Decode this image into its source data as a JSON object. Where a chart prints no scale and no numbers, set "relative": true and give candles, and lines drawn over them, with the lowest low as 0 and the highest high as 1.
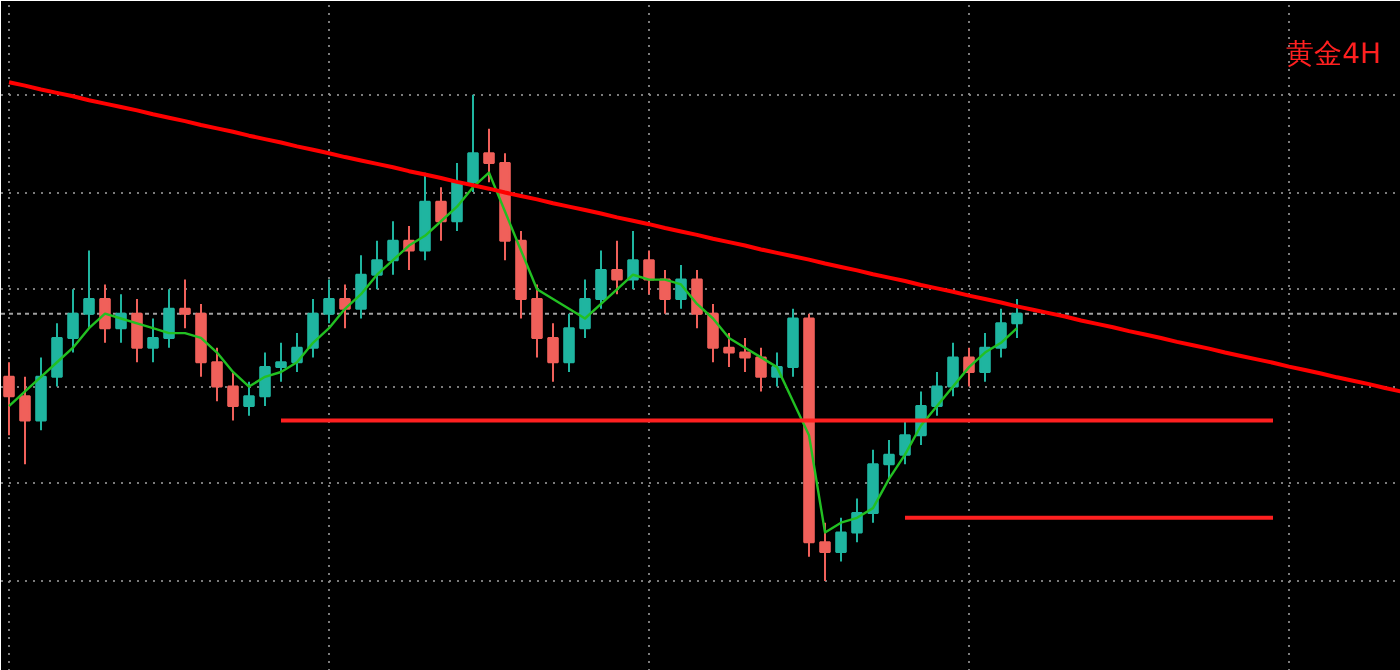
{
  "chart_data": {
    "type": "candlestick",
    "title": "黄金4H",
    "relative": true,
    "grid": true,
    "tick_labels": false,
    "categories": [
      null,
      null,
      null,
      null,
      null,
      null,
      null,
      null,
      null,
      null,
      null,
      null,
      null,
      null,
      null,
      null,
      null,
      null,
      null,
      null,
      null,
      null,
      null,
      null,
      null,
      null,
      null,
      null,
      null,
      null,
      null,
      null,
      null,
      null,
      null,
      null,
      null,
      null,
      null,
      null,
      null,
      null,
      null,
      null,
      null,
      null,
      null,
      null,
      null,
      null,
      null,
      null,
      null,
      null,
      null,
      null,
      null,
      null,
      null,
      null,
      null,
      null,
      null,
      null,
      null,
      null,
      null,
      null,
      null,
      null,
      null,
      null,
      null,
      null,
      null,
      null,
      null,
      null,
      null,
      null,
      null,
      null,
      null,
      null,
      null,
      null,
      null,
      null
    ],
    "ohlc": [
      [
        0.42,
        0.45,
        0.3,
        0.38
      ],
      [
        0.38,
        0.42,
        0.24,
        0.33
      ],
      [
        0.33,
        0.46,
        0.31,
        0.42
      ],
      [
        0.42,
        0.53,
        0.4,
        0.5
      ],
      [
        0.5,
        0.6,
        0.47,
        0.55
      ],
      [
        0.55,
        0.68,
        0.52,
        0.58
      ],
      [
        0.58,
        0.61,
        0.49,
        0.52
      ],
      [
        0.52,
        0.59,
        0.49,
        0.55
      ],
      [
        0.55,
        0.58,
        0.45,
        0.48
      ],
      [
        0.48,
        0.54,
        0.45,
        0.5
      ],
      [
        0.5,
        0.6,
        0.48,
        0.56
      ],
      [
        0.56,
        0.62,
        0.52,
        0.55
      ],
      [
        0.55,
        0.57,
        0.42,
        0.45
      ],
      [
        0.45,
        0.48,
        0.37,
        0.4
      ],
      [
        0.4,
        0.43,
        0.33,
        0.36
      ],
      [
        0.36,
        0.41,
        0.34,
        0.38
      ],
      [
        0.38,
        0.47,
        0.36,
        0.44
      ],
      [
        0.44,
        0.49,
        0.41,
        0.45
      ],
      [
        0.45,
        0.51,
        0.43,
        0.48
      ],
      [
        0.48,
        0.58,
        0.46,
        0.55
      ],
      [
        0.55,
        0.62,
        0.53,
        0.58
      ],
      [
        0.58,
        0.61,
        0.52,
        0.56
      ],
      [
        0.56,
        0.67,
        0.54,
        0.63
      ],
      [
        0.63,
        0.7,
        0.6,
        0.66
      ],
      [
        0.66,
        0.74,
        0.63,
        0.7
      ],
      [
        0.7,
        0.73,
        0.64,
        0.68
      ],
      [
        0.68,
        0.84,
        0.66,
        0.78
      ],
      [
        0.78,
        0.81,
        0.7,
        0.74
      ],
      [
        0.74,
        0.86,
        0.72,
        0.82
      ],
      [
        0.82,
        1.0,
        0.8,
        0.88
      ],
      [
        0.88,
        0.93,
        0.82,
        0.86
      ],
      [
        0.86,
        0.88,
        0.66,
        0.7
      ],
      [
        0.7,
        0.72,
        0.54,
        0.58
      ],
      [
        0.58,
        0.61,
        0.46,
        0.5
      ],
      [
        0.5,
        0.53,
        0.41,
        0.45
      ],
      [
        0.45,
        0.55,
        0.43,
        0.52
      ],
      [
        0.52,
        0.62,
        0.5,
        0.58
      ],
      [
        0.58,
        0.68,
        0.56,
        0.64
      ],
      [
        0.64,
        0.7,
        0.59,
        0.62
      ],
      [
        0.62,
        0.72,
        0.6,
        0.66
      ],
      [
        0.66,
        0.68,
        0.59,
        0.62
      ],
      [
        0.62,
        0.64,
        0.55,
        0.58
      ],
      [
        0.58,
        0.65,
        0.56,
        0.62
      ],
      [
        0.62,
        0.64,
        0.52,
        0.55
      ],
      [
        0.55,
        0.57,
        0.45,
        0.48
      ],
      [
        0.48,
        0.51,
        0.44,
        0.47
      ],
      [
        0.47,
        0.5,
        0.43,
        0.46
      ],
      [
        0.46,
        0.48,
        0.39,
        0.42
      ],
      [
        0.42,
        0.47,
        0.4,
        0.44
      ],
      [
        0.44,
        0.56,
        0.42,
        0.54
      ],
      [
        0.54,
        0.55,
        0.05,
        0.08
      ],
      [
        0.08,
        0.12,
        0.0,
        0.06
      ],
      [
        0.06,
        0.13,
        0.04,
        0.1
      ],
      [
        0.1,
        0.17,
        0.08,
        0.14
      ],
      [
        0.14,
        0.27,
        0.12,
        0.24
      ],
      [
        0.24,
        0.29,
        0.21,
        0.26
      ],
      [
        0.26,
        0.33,
        0.24,
        0.3
      ],
      [
        0.3,
        0.39,
        0.28,
        0.36
      ],
      [
        0.36,
        0.43,
        0.34,
        0.4
      ],
      [
        0.4,
        0.49,
        0.38,
        0.46
      ],
      [
        0.46,
        0.48,
        0.4,
        0.43
      ],
      [
        0.43,
        0.51,
        0.41,
        0.48
      ],
      [
        0.48,
        0.56,
        0.46,
        0.53
      ],
      [
        0.53,
        0.58,
        0.5,
        0.55
      ],
      null,
      null,
      null,
      null,
      null,
      null,
      null,
      null,
      null,
      null,
      null,
      null,
      null,
      null,
      null,
      null,
      null,
      null,
      null,
      null,
      null,
      null,
      null,
      null
    ],
    "colors": [
      "#f0605a",
      "#f0605a",
      "#1fb5a0",
      "#1fb5a0",
      "#1fb5a0",
      "#1fb5a0",
      "#f0605a",
      "#1fb5a0",
      "#f0605a",
      "#1fb5a0",
      "#1fb5a0",
      "#f0605a",
      "#f0605a",
      "#f0605a",
      "#f0605a",
      "#1fb5a0",
      "#1fb5a0",
      "#1fb5a0",
      "#1fb5a0",
      "#1fb5a0",
      "#1fb5a0",
      "#f0605a",
      "#1fb5a0",
      "#1fb5a0",
      "#1fb5a0",
      "#f0605a",
      "#1fb5a0",
      "#f0605a",
      "#1fb5a0",
      "#1fb5a0",
      "#f0605a",
      "#f0605a",
      "#f0605a",
      "#f0605a",
      "#f0605a",
      "#1fb5a0",
      "#1fb5a0",
      "#1fb5a0",
      "#f0605a",
      "#1fb5a0",
      "#f0605a",
      "#f0605a",
      "#1fb5a0",
      "#f0605a",
      "#f0605a",
      "#f0605a",
      "#f0605a",
      "#f0605a",
      "#1fb5a0",
      "#1fb5a0",
      "#f0605a",
      "#f0605a",
      "#1fb5a0",
      "#1fb5a0",
      "#1fb5a0",
      "#1fb5a0",
      "#1fb5a0",
      "#1fb5a0",
      "#1fb5a0",
      "#1fb5a0",
      "#f0605a",
      "#1fb5a0",
      "#1fb5a0",
      "#1fb5a0",
      null,
      null,
      null,
      null,
      null,
      null,
      null,
      null,
      null,
      null,
      null,
      null,
      null,
      null,
      null,
      null,
      null,
      null,
      null,
      null,
      null,
      null,
      null,
      null
    ],
    "series": [
      {
        "type": "line",
        "color": "#22c022",
        "values": [
          0.36,
          0.39,
          0.42,
          0.45,
          0.48,
          0.52,
          0.55,
          0.54,
          0.53,
          0.52,
          0.51,
          0.51,
          0.5,
          0.47,
          0.43,
          0.4,
          0.42,
          0.43,
          0.45,
          0.49,
          0.52,
          0.56,
          0.59,
          0.63,
          0.66,
          0.69,
          0.71,
          0.74,
          0.77,
          0.81,
          0.84,
          0.76,
          0.68,
          0.6,
          0.58,
          0.56,
          0.54,
          0.57,
          0.6,
          0.63,
          0.62,
          0.62,
          0.61,
          0.57,
          0.54,
          0.5,
          0.48,
          0.46,
          0.44,
          0.37,
          0.3,
          0.1,
          0.12,
          0.13,
          0.15,
          0.21,
          0.26,
          0.32,
          0.36,
          0.4,
          0.44,
          0.47,
          0.49,
          0.52,
          null,
          null,
          null,
          null,
          null,
          null,
          null,
          null,
          null,
          null,
          null,
          null,
          null,
          null,
          null,
          null,
          null,
          null,
          null,
          null,
          null,
          null,
          null,
          null
        ]
      },
      {
        "type": "line",
        "color": "#ff0000",
        "values": [
          1.026,
          1.019,
          1.011,
          1.004,
          0.997,
          0.989,
          0.982,
          0.975,
          0.968,
          0.96,
          0.953,
          0.946,
          0.938,
          0.931,
          0.924,
          0.916,
          0.909,
          0.902,
          0.894,
          0.887,
          0.88,
          0.872,
          0.865,
          0.858,
          0.851,
          0.843,
          0.836,
          0.829,
          0.821,
          0.814,
          0.807,
          0.799,
          0.792,
          0.785,
          0.777,
          0.77,
          0.763,
          0.756,
          0.748,
          0.741,
          0.734,
          0.726,
          0.719,
          0.712,
          0.704,
          0.697,
          0.69,
          0.682,
          0.675,
          0.668,
          0.661,
          0.653,
          0.646,
          0.639,
          0.631,
          0.624,
          0.617,
          0.609,
          0.602,
          0.595,
          0.587,
          0.58,
          0.573,
          0.565,
          0.558,
          0.551,
          0.544,
          0.536,
          0.529,
          0.522,
          0.514,
          0.507,
          0.5,
          0.492,
          0.485,
          0.478,
          0.47,
          0.463,
          0.456,
          0.449,
          0.441,
          0.434,
          0.427,
          0.419,
          0.412,
          0.405,
          0.397,
          0.39
        ]
      },
      {
        "type": "line",
        "color": "#ff2020",
        "values": [
          null,
          null,
          null,
          null,
          null,
          null,
          null,
          null,
          null,
          null,
          null,
          null,
          null,
          null,
          null,
          null,
          null,
          0.33,
          0.33,
          0.33,
          0.33,
          0.33,
          0.33,
          0.33,
          0.33,
          0.33,
          0.33,
          0.33,
          0.33,
          0.33,
          0.33,
          0.33,
          0.33,
          0.33,
          0.33,
          0.33,
          0.33,
          0.33,
          0.33,
          0.33,
          0.33,
          0.33,
          0.33,
          0.33,
          0.33,
          0.33,
          0.33,
          0.33,
          0.33,
          0.33,
          0.33,
          0.33,
          0.33,
          0.33,
          0.33,
          0.33,
          0.33,
          0.33,
          0.33,
          0.33,
          0.33,
          0.33,
          0.33,
          0.33,
          0.33,
          0.33,
          0.33,
          0.33,
          0.33,
          0.33,
          0.33,
          0.33,
          0.33,
          0.33,
          0.33,
          0.33,
          0.33,
          0.33,
          0.33,
          0.33,
          null,
          null,
          null,
          null,
          null,
          null,
          null,
          null
        ]
      },
      {
        "type": "line",
        "color": "#ff2020",
        "values": [
          null,
          null,
          null,
          null,
          null,
          null,
          null,
          null,
          null,
          null,
          null,
          null,
          null,
          null,
          null,
          null,
          null,
          null,
          null,
          null,
          null,
          null,
          null,
          null,
          null,
          null,
          null,
          null,
          null,
          null,
          null,
          null,
          null,
          null,
          null,
          null,
          null,
          null,
          null,
          null,
          null,
          null,
          null,
          null,
          null,
          null,
          null,
          null,
          null,
          null,
          null,
          null,
          null,
          null,
          null,
          null,
          0.13,
          0.13,
          0.13,
          0.13,
          0.13,
          0.13,
          0.13,
          0.13,
          0.13,
          0.13,
          0.13,
          0.13,
          0.13,
          0.13,
          0.13,
          0.13,
          0.13,
          0.13,
          0.13,
          0.13,
          0.13,
          0.13,
          0.13,
          0.13,
          null,
          null,
          null,
          null,
          null,
          null,
          null,
          null
        ]
      }
    ],
    "ref_lines": [
      {
        "axis": "y",
        "value": 0.55,
        "color": "#a0a0a0",
        "line_style": "dotted"
      }
    ]
  }
}
